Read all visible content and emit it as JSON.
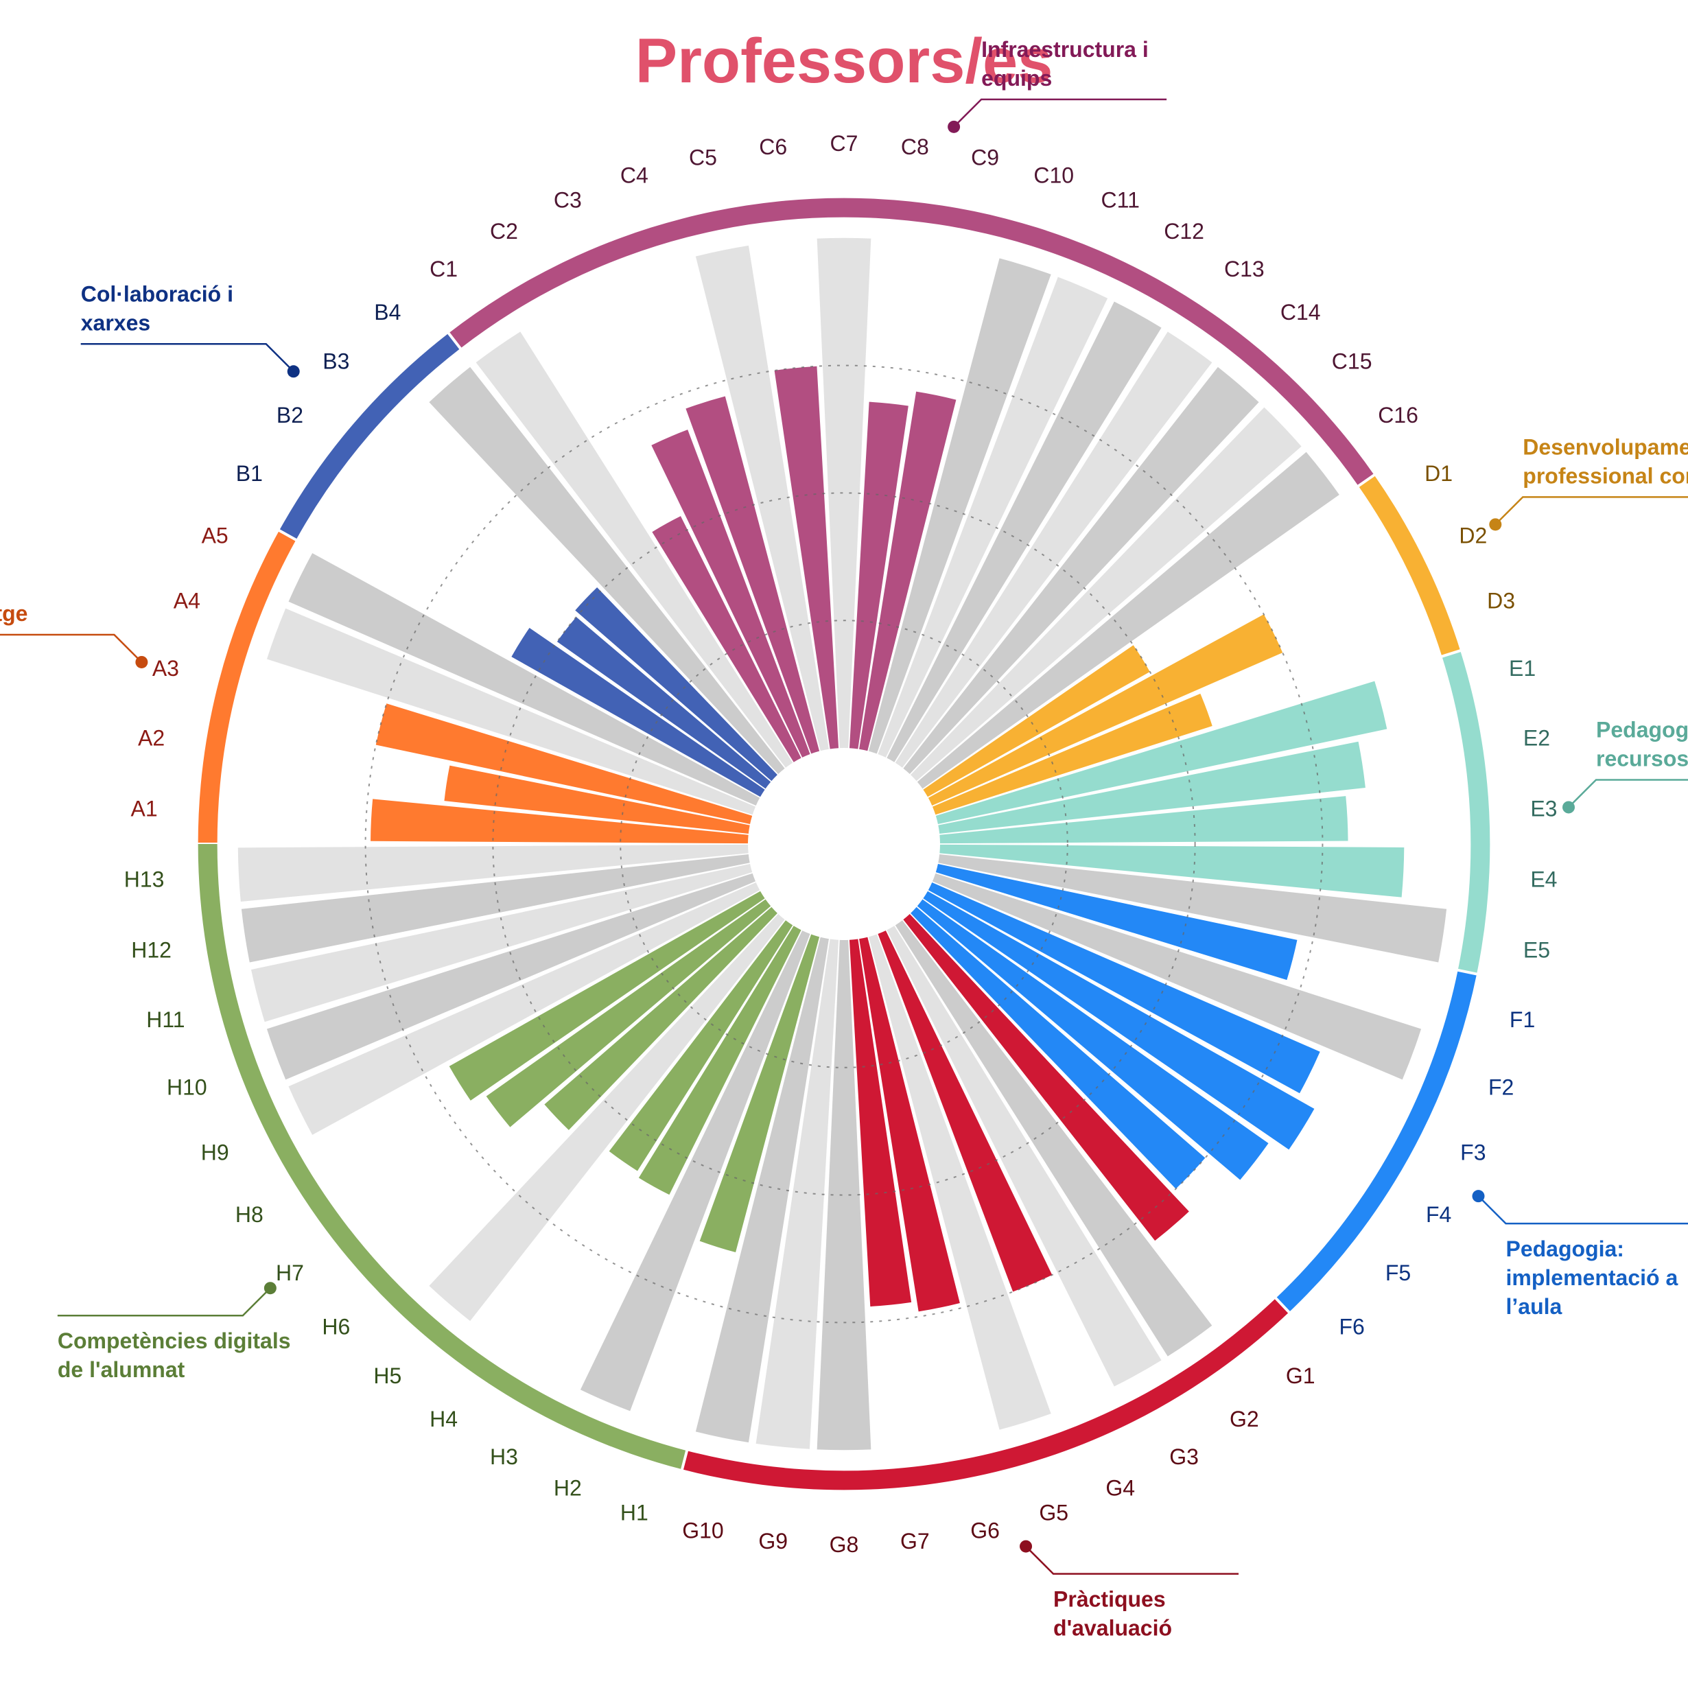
{
  "chart_data": {
    "type": "bar",
    "polar": true,
    "title": "Professors/es",
    "title_color": "#e0516b",
    "grid": true,
    "ylim": [
      0,
      1
    ],
    "track_color": "#cccccc",
    "track_color_alt": "#e2e2e2",
    "groups": [
      {
        "key": "A",
        "name": "Lideratge",
        "color": "#ff7a2f",
        "label_color": "#c64b0f",
        "tick_color": "#8b1a14",
        "items": [
          {
            "label": "A1",
            "value": 0.74
          },
          {
            "label": "A2",
            "value": 0.6
          },
          {
            "label": "A3",
            "value": 0.75
          },
          {
            "label": "A4",
            "value": null
          },
          {
            "label": "A5",
            "value": null
          }
        ]
      },
      {
        "key": "B",
        "name": "Col·laboració i xarxes",
        "color": "#4262b5",
        "label_color": "#0e3183",
        "tick_color": "#0d1f52",
        "items": [
          {
            "label": "B1",
            "value": 0.56
          },
          {
            "label": "B2",
            "value": 0.5
          },
          {
            "label": "B3",
            "value": 0.51
          },
          {
            "label": "B4",
            "value": null
          }
        ]
      },
      {
        "key": "C",
        "name": "Infraestructura i equips",
        "color": "#b24e81",
        "label_color": "#821a57",
        "tick_color": "#4e1632",
        "items": [
          {
            "label": "C1",
            "value": null
          },
          {
            "label": "C2",
            "value": 0.53
          },
          {
            "label": "C3",
            "value": 0.68
          },
          {
            "label": "C4",
            "value": 0.72
          },
          {
            "label": "C5",
            "value": null
          },
          {
            "label": "C6",
            "value": 0.75
          },
          {
            "label": "C7",
            "value": null
          },
          {
            "label": "C8",
            "value": 0.68
          },
          {
            "label": "C9",
            "value": 0.71
          },
          {
            "label": "C10",
            "value": null
          },
          {
            "label": "C11",
            "value": null
          },
          {
            "label": "C12",
            "value": null
          },
          {
            "label": "C13",
            "value": null
          },
          {
            "label": "C14",
            "value": null
          },
          {
            "label": "C15",
            "value": null
          },
          {
            "label": "C16",
            "value": null
          }
        ]
      },
      {
        "key": "D",
        "name": "Desenvolupament professional continu",
        "color": "#f8b133",
        "label_color": "#c68416",
        "tick_color": "#7a5000",
        "items": [
          {
            "label": "D1",
            "value": 0.5
          },
          {
            "label": "D2",
            "value": 0.75
          },
          {
            "label": "D3",
            "value": 0.57
          }
        ]
      },
      {
        "key": "E",
        "name": "Pedagogia: suports i recursos",
        "color": "#95dcce",
        "label_color": "#5aaa99",
        "tick_color": "#336b60",
        "items": [
          {
            "label": "E1",
            "value": 0.9
          },
          {
            "label": "E2",
            "value": 0.84
          },
          {
            "label": "E3",
            "value": 0.8
          },
          {
            "label": "E4",
            "value": 0.91
          },
          {
            "label": "E5",
            "value": null
          }
        ]
      },
      {
        "key": "F",
        "name": "Pedagogia: implementació a l’aula",
        "color": "#2388f6",
        "label_color": "#1460c4",
        "tick_color": "#0b3280",
        "items": [
          {
            "label": "F1",
            "value": 0.72
          },
          {
            "label": "F2",
            "value": null
          },
          {
            "label": "F3",
            "value": 0.83
          },
          {
            "label": "F4",
            "value": 0.87
          },
          {
            "label": "F5",
            "value": 0.83
          },
          {
            "label": "F6",
            "value": 0.75
          }
        ]
      },
      {
        "key": "G",
        "name": "Pràctiques d'avaluació",
        "color": "#cf1834",
        "label_color": "#8d0f1f",
        "tick_color": "#5c0a14",
        "items": [
          {
            "label": "G1",
            "value": 0.8
          },
          {
            "label": "G2",
            "value": null
          },
          {
            "label": "G3",
            "value": null
          },
          {
            "label": "G4",
            "value": 0.75
          },
          {
            "label": "G5",
            "value": null
          },
          {
            "label": "G6",
            "value": 0.74
          },
          {
            "label": "G7",
            "value": 0.72
          },
          {
            "label": "G8",
            "value": null
          },
          {
            "label": "G9",
            "value": null
          },
          {
            "label": "G10",
            "value": null
          }
        ]
      },
      {
        "key": "H",
        "name": "Competències digitals de l'alumnat",
        "color": "#8aaf61",
        "label_color": "#5b7e37",
        "tick_color": "#33501b",
        "items": [
          {
            "label": "H1",
            "value": 0.64
          },
          {
            "label": "H2",
            "value": null
          },
          {
            "label": "H3",
            "value": 0.58
          },
          {
            "label": "H4",
            "value": 0.57
          },
          {
            "label": "H5",
            "value": null
          },
          {
            "label": "H6",
            "value": 0.59
          },
          {
            "label": "H7",
            "value": 0.67
          },
          {
            "label": "H8",
            "value": 0.7
          },
          {
            "label": "H9",
            "value": null
          },
          {
            "label": "H10",
            "value": null
          },
          {
            "label": "H11",
            "value": null
          },
          {
            "label": "H12",
            "value": null
          },
          {
            "label": "H13",
            "value": null
          }
        ]
      }
    ]
  }
}
